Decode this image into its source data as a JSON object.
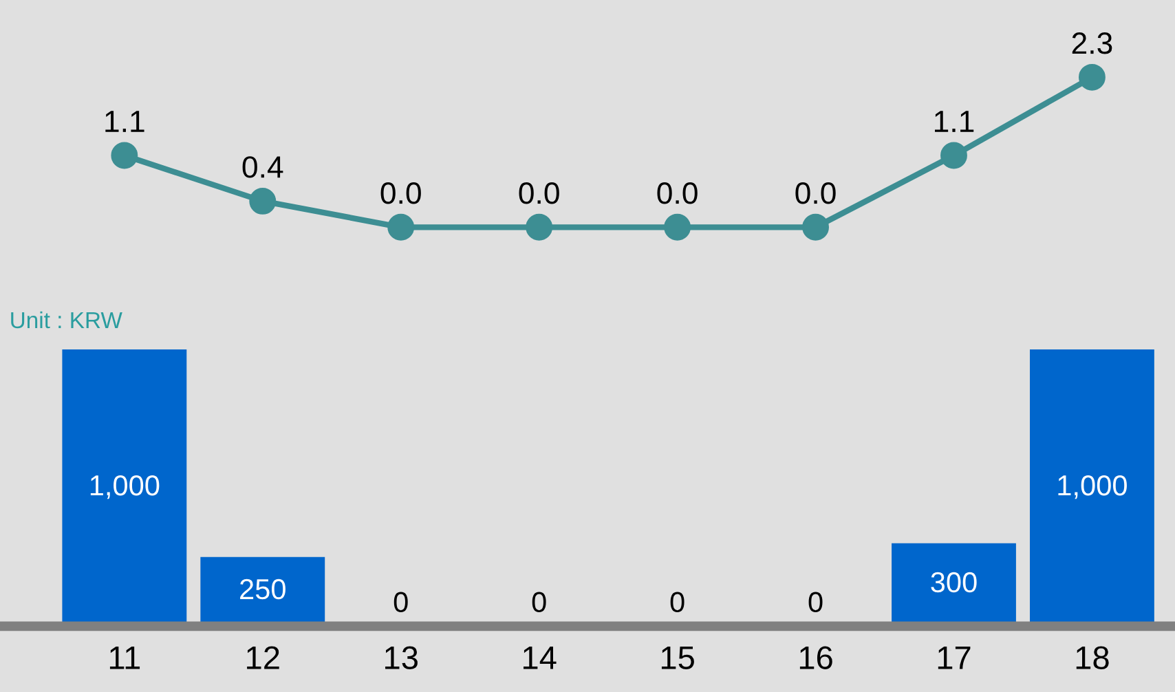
{
  "chart_data": [
    {
      "type": "line",
      "categories": [
        "11",
        "12",
        "13",
        "14",
        "15",
        "16",
        "17",
        "18"
      ],
      "series": [
        {
          "color": "#3d8e93",
          "values": [
            1.1,
            0.4,
            0.0,
            0.0,
            0.0,
            0.0,
            1.1,
            2.3
          ],
          "value_labels": [
            "1.1",
            "0.4",
            "0.0",
            "0.0",
            "0.0",
            "0.0",
            "1.1",
            "2.3"
          ]
        }
      ],
      "marker": "circle",
      "tick_labels": false
    },
    {
      "type": "bar",
      "categories": [
        "11",
        "12",
        "13",
        "14",
        "15",
        "16",
        "17",
        "18"
      ],
      "series": [
        {
          "color": "#0066cc",
          "values": [
            1000,
            250,
            0,
            0,
            0,
            0,
            300,
            1000
          ],
          "value_labels": [
            "1,000",
            "250",
            "0",
            "0",
            "0",
            "0",
            "300",
            "1,000"
          ]
        }
      ],
      "tick_labels": "x",
      "annotations": [
        "Unit : KRW"
      ]
    }
  ]
}
